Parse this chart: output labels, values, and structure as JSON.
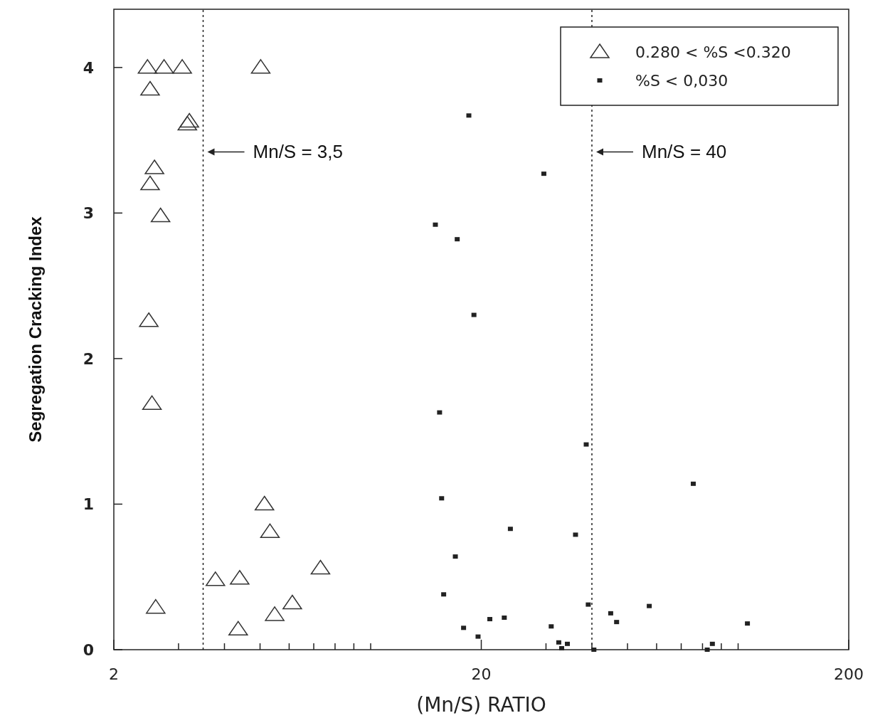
{
  "chart_data": {
    "type": "scatter",
    "xlabel": "(Mn/S) RATIO",
    "ylabel": "Segregation Cracking Index",
    "log": "x",
    "xlim": [
      2,
      200
    ],
    "ylim": [
      0,
      4.4
    ],
    "xticks": [
      2,
      {
        "value": 3,
        "label": null
      },
      {
        "value": 4,
        "label": null
      },
      {
        "value": 5,
        "label": null
      },
      {
        "value": 6,
        "label": null
      },
      {
        "value": 7,
        "label": null
      },
      {
        "value": 8,
        "label": null
      },
      {
        "value": 9,
        "label": null
      },
      {
        "value": 10,
        "label": null
      },
      20,
      {
        "value": 30,
        "label": null
      },
      {
        "value": 40,
        "label": null
      },
      {
        "value": 50,
        "label": null
      },
      {
        "value": 60,
        "label": null
      },
      {
        "value": 70,
        "label": null
      },
      {
        "value": 80,
        "label": null
      },
      {
        "value": 90,
        "label": null
      },
      {
        "value": 100,
        "label": null
      },
      200
    ],
    "yticks": [
      0,
      1,
      2,
      3,
      4
    ],
    "grid": false,
    "legend": "top right",
    "ref_lines": [
      {
        "axis": "x",
        "value": 3.5,
        "label": "Mn/S = 3,5",
        "line_style": "dotted"
      },
      {
        "axis": "x",
        "value": 40,
        "label": "Mn/S = 40",
        "line_style": "dotted"
      }
    ],
    "series": [
      {
        "name": "0.280 < %S <0.320",
        "color": "#333333",
        "marker": "triangle",
        "x": [
          2.47,
          2.74,
          3.07,
          5.02,
          2.51,
          3.21,
          3.17,
          2.58,
          2.51,
          2.68,
          2.49,
          2.54,
          2.6,
          3.78,
          4.4,
          4.36,
          5.14,
          5.32,
          5.48,
          6.12,
          7.3
        ],
        "values": [
          4.0,
          4.0,
          4.0,
          4.0,
          3.85,
          3.63,
          3.61,
          3.31,
          3.2,
          2.98,
          2.26,
          1.69,
          0.29,
          0.48,
          0.49,
          0.14,
          1.0,
          0.81,
          0.24,
          0.32,
          0.56
        ]
      },
      {
        "name": "%S < 0,030",
        "color": "#222222",
        "marker": "square",
        "x": [
          18.5,
          29.6,
          15.0,
          17.2,
          19.1,
          15.4,
          15.6,
          38.6,
          75.5,
          24.0,
          36.1,
          17.0,
          15.8,
          17.9,
          19.6,
          21.1,
          23.1,
          31.0,
          32.5,
          34.3,
          33.1,
          39.1,
          40.5,
          45.0,
          46.7,
          57.3,
          82.4,
          85.1,
          106
        ],
        "values": [
          3.67,
          3.27,
          2.92,
          2.82,
          2.3,
          1.63,
          1.04,
          1.41,
          1.14,
          0.83,
          0.79,
          0.64,
          0.38,
          0.15,
          0.09,
          0.21,
          0.22,
          0.16,
          0.05,
          0.04,
          0.01,
          0.31,
          0.0,
          0.25,
          0.19,
          0.3,
          0.0,
          0.04,
          0.18
        ]
      }
    ]
  }
}
